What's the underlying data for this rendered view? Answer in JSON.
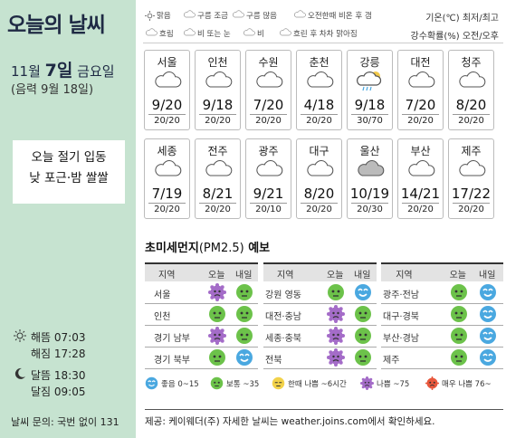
{
  "title": "오늘의 날씨",
  "date": {
    "month": "11월",
    "day": "7일",
    "weekday": "금요일",
    "lunar": "(음력 9월 18일)"
  },
  "notice": [
    "오늘 절기 입동",
    "낮 포근·밤 쌀쌀"
  ],
  "legend": {
    "items": [
      "맑음",
      "구름 조금",
      "구름 많음",
      "오전한때 비온 후 갬",
      "흐림",
      "비 또는 눈",
      "비",
      "흐린 후 차차 맑아짐"
    ],
    "units": [
      "기온(℃) 최저/최고",
      "강수확률(%) 오전/오후"
    ]
  },
  "cities": [
    {
      "name": "서울",
      "icon": "cloudy-icon",
      "temp": "9/20",
      "rain": "20/20"
    },
    {
      "name": "인천",
      "icon": "cloudy-icon",
      "temp": "9/18",
      "rain": "20/20"
    },
    {
      "name": "수원",
      "icon": "cloudy-icon",
      "temp": "7/20",
      "rain": "20/20"
    },
    {
      "name": "춘천",
      "icon": "cloudy-icon",
      "temp": "4/18",
      "rain": "20/20"
    },
    {
      "name": "강릉",
      "icon": "rain-then-clear-icon",
      "temp": "9/18",
      "rain": "30/70"
    },
    {
      "name": "대전",
      "icon": "cloudy-icon",
      "temp": "7/20",
      "rain": "20/20"
    },
    {
      "name": "청주",
      "icon": "cloudy-icon",
      "temp": "8/20",
      "rain": "20/20"
    },
    {
      "name": "세종",
      "icon": "cloudy-icon",
      "temp": "7/19",
      "rain": "20/20"
    },
    {
      "name": "전주",
      "icon": "cloudy-icon",
      "temp": "8/21",
      "rain": "20/20"
    },
    {
      "name": "광주",
      "icon": "cloudy-icon",
      "temp": "9/21",
      "rain": "20/10"
    },
    {
      "name": "대구",
      "icon": "cloudy-icon",
      "temp": "8/20",
      "rain": "20/20"
    },
    {
      "name": "울산",
      "icon": "overcast-icon",
      "temp": "10/19",
      "rain": "20/30"
    },
    {
      "name": "부산",
      "icon": "cloudy-icon",
      "temp": "14/21",
      "rain": "20/20"
    },
    {
      "name": "제주",
      "icon": "cloudy-icon",
      "temp": "17/22",
      "rain": "20/20"
    }
  ],
  "dust": {
    "title": "초미세먼지",
    "unit": "(PM2.5)",
    "suffix": "예보",
    "headers": [
      "지역",
      "오늘",
      "내일"
    ],
    "columns": [
      [
        {
          "region": "서울",
          "today": "bad",
          "tomorrow": "normal"
        },
        {
          "region": "인천",
          "today": "normal",
          "tomorrow": "normal"
        },
        {
          "region": "경기 남부",
          "today": "bad",
          "tomorrow": "normal"
        },
        {
          "region": "경기 북부",
          "today": "normal",
          "tomorrow": "good"
        }
      ],
      [
        {
          "region": "강원 영동",
          "today": "normal",
          "tomorrow": "good"
        },
        {
          "region": "대전·충남",
          "today": "bad",
          "tomorrow": "normal"
        },
        {
          "region": "세종·충북",
          "today": "bad",
          "tomorrow": "normal"
        },
        {
          "region": "전북",
          "today": "bad",
          "tomorrow": "normal"
        }
      ],
      [
        {
          "region": "광주·전남",
          "today": "normal",
          "tomorrow": "good"
        },
        {
          "region": "대구·경북",
          "today": "normal",
          "tomorrow": "good"
        },
        {
          "region": "부산·경남",
          "today": "normal",
          "tomorrow": "good"
        },
        {
          "region": "제주",
          "today": "normal",
          "tomorrow": "good"
        }
      ]
    ],
    "legend": [
      "좋음 0~15",
      "보통 ~35",
      "한때 나쁨 ~6시간",
      "나쁨 ~75",
      "매우 나쁨 76~"
    ]
  },
  "sun": {
    "sunrise": "해뜸 07:03",
    "sunset": "해짐 17:28",
    "moonrise": "달뜸 18:30",
    "moonset": "달짐 09:05"
  },
  "inquiry": "날씨 문의: 국번 없이 131",
  "footer": "제공: 케이웨더(주) 자세한 날씨는 weather.joins.com에서 확인하세요.",
  "colors": {
    "panel": "#c6e3d0",
    "good": "#4aa8e0",
    "normal": "#6cc24a",
    "bad": "#a46cc8",
    "caution": "#f2d24a",
    "very_bad": "#e8573c"
  }
}
